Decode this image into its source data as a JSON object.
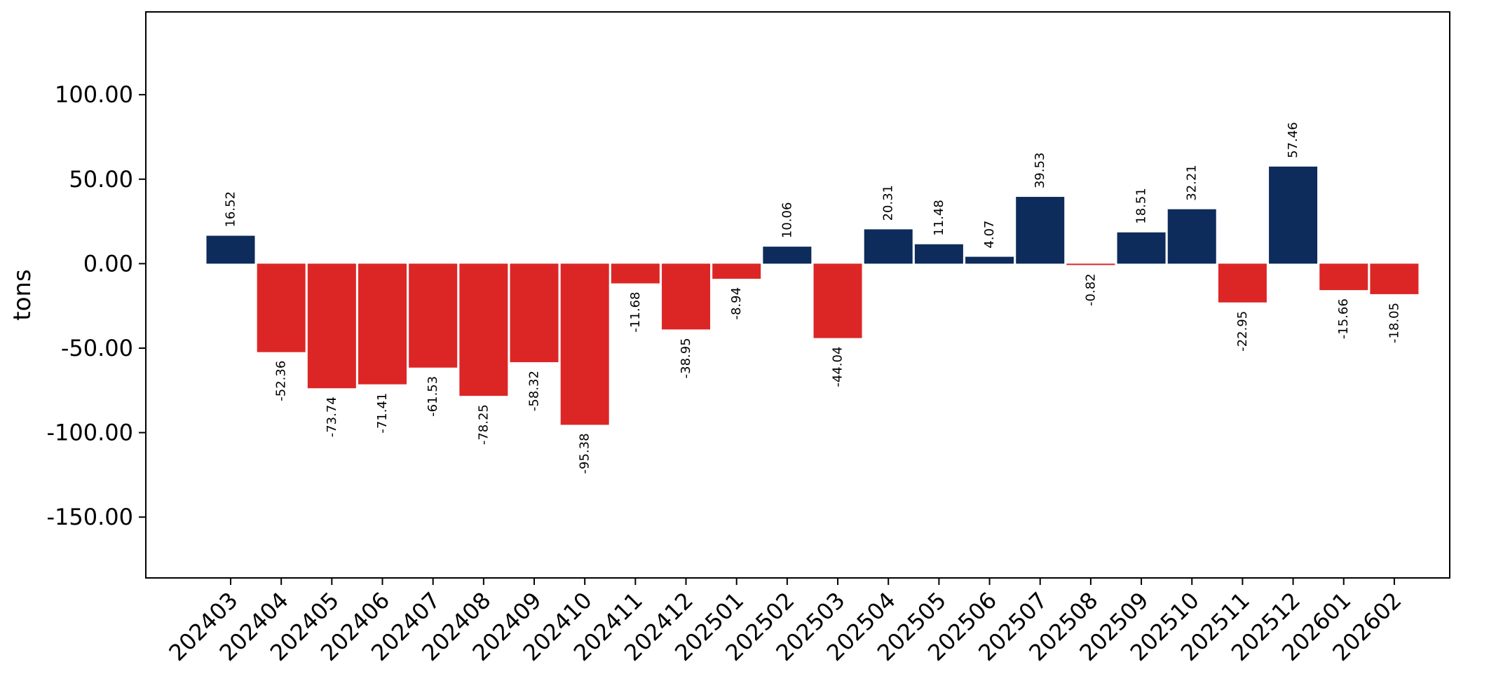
{
  "chart_data": {
    "type": "bar",
    "ylabel": "tons",
    "xlabel": "",
    "ylim": [
      -186,
      149
    ],
    "yticks": [
      100,
      50,
      0,
      -50,
      -100,
      -150
    ],
    "ytick_labels": [
      "100.00",
      "50.00",
      "0.00",
      "-50.00",
      "-100.00",
      "-150.00"
    ],
    "categories": [
      "202403",
      "202404",
      "202405",
      "202406",
      "202407",
      "202408",
      "202409",
      "202410",
      "202411",
      "202412",
      "202501",
      "202502",
      "202503",
      "202504",
      "202505",
      "202506",
      "202507",
      "202508",
      "202509",
      "202510",
      "202511",
      "202512",
      "202601",
      "202602"
    ],
    "values": [
      16.52,
      -52.36,
      -73.74,
      -71.41,
      -61.53,
      -78.25,
      -58.32,
      -95.38,
      -11.68,
      -38.95,
      -8.94,
      10.06,
      -44.04,
      20.31,
      11.48,
      4.07,
      39.53,
      -0.82,
      18.51,
      32.21,
      -22.95,
      57.46,
      -15.66,
      -18.05
    ],
    "value_labels": [
      "16.52",
      "-52.36",
      "-73.74",
      "-71.41",
      "-61.53",
      "-78.25",
      "-58.32",
      "-95.38",
      "-11.68",
      "-38.95",
      "-8.94",
      "10.06",
      "-44.04",
      "20.31",
      "11.48",
      "4.07",
      "39.53",
      "-0.82",
      "18.51",
      "32.21",
      "-22.95",
      "57.46",
      "-15.66",
      "-18.05"
    ],
    "colors": {
      "positive": "#0d2b5b",
      "negative": "#dc2626"
    },
    "grid": false,
    "legend": "none"
  }
}
